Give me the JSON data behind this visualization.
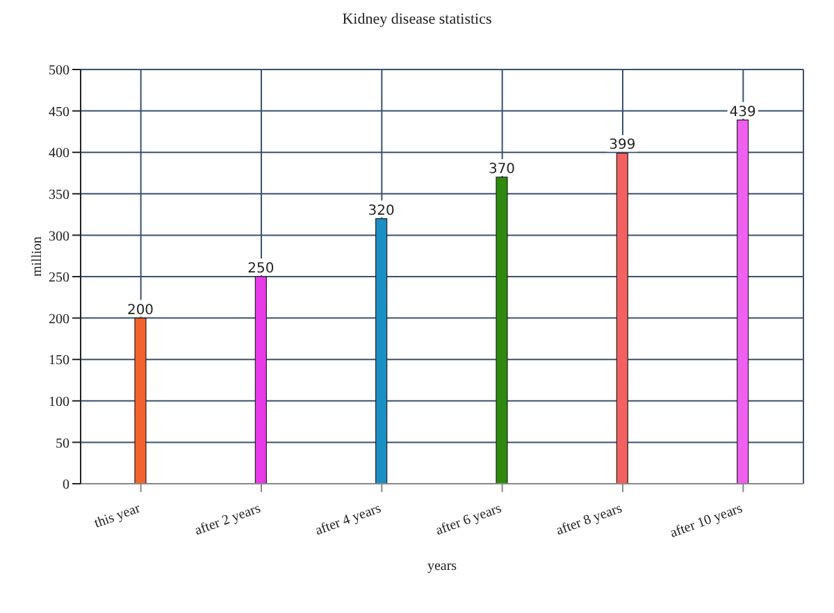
{
  "chart_data": {
    "type": "bar",
    "title": "Kidney disease statistics",
    "xlabel": "years",
    "ylabel": "million",
    "categories": [
      "this year",
      "after 2 years",
      "after 4 years",
      "after 6 years",
      "after 8 years",
      "after 10 years"
    ],
    "values": [
      200,
      250,
      320,
      370,
      399,
      439
    ],
    "colors": [
      "#f4622e",
      "#e83ae8",
      "#1a8fc4",
      "#2e8a0e",
      "#f26060",
      "#f060f0"
    ],
    "ylim": [
      0,
      500
    ],
    "yticks": [
      0,
      50,
      100,
      150,
      200,
      250,
      300,
      350,
      400,
      450,
      500
    ],
    "grid": true,
    "data_labels": true
  }
}
